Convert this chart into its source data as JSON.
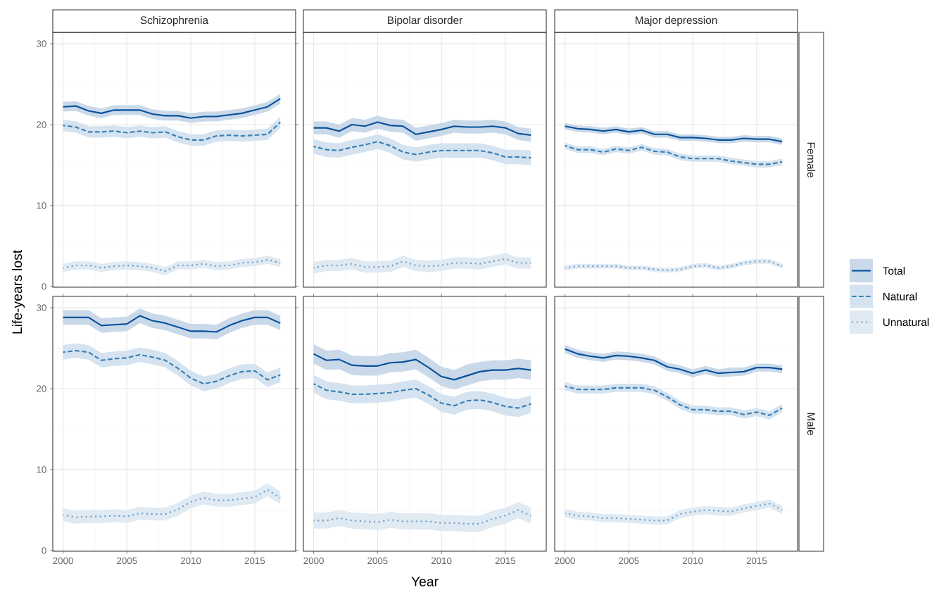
{
  "chart_data": [
    {
      "type": "line",
      "title": "Schizophrenia",
      "ylabel": "Life-years lost",
      "legend": "right",
      "x": [
        2000,
        2001,
        2002,
        2003,
        2004,
        2005,
        2006,
        2007,
        2008,
        2009,
        2010,
        2011,
        2012,
        2013,
        2014,
        2015,
        2016,
        2017
      ],
      "xlim": [
        1999.2,
        2018.2
      ],
      "ylim": [
        -0.1,
        31.4
      ],
      "xticks": [
        2000,
        2005,
        2010,
        2015
      ],
      "yticks": [
        0,
        10,
        20,
        30
      ],
      "grid": true,
      "tick_labels": "y",
      "series": [
        {
          "name": "Total",
          "color": "#08519c",
          "line_style": "solid",
          "values": [
            22.2,
            22.3,
            21.7,
            21.4,
            21.8,
            21.8,
            21.8,
            21.3,
            21.1,
            21.1,
            20.8,
            21.0,
            21.0,
            21.2,
            21.4,
            21.8,
            22.2,
            23.2
          ],
          "lower": [
            21.6,
            21.7,
            21.1,
            20.8,
            21.2,
            21.2,
            21.2,
            20.7,
            20.5,
            20.5,
            20.2,
            20.4,
            20.4,
            20.6,
            20.8,
            21.2,
            21.6,
            22.6
          ],
          "upper": [
            22.8,
            22.9,
            22.3,
            22.0,
            22.4,
            22.4,
            22.4,
            21.9,
            21.7,
            21.7,
            21.4,
            21.6,
            21.6,
            21.8,
            22.0,
            22.4,
            22.8,
            23.8
          ]
        },
        {
          "name": "Natural",
          "color": "#3b7fb5",
          "line_style": "dashed",
          "values": [
            19.9,
            19.7,
            19.1,
            19.1,
            19.2,
            19.0,
            19.2,
            19.0,
            19.1,
            18.5,
            18.1,
            18.1,
            18.6,
            18.7,
            18.6,
            18.7,
            18.8,
            20.3
          ],
          "lower": [
            19.2,
            19.0,
            18.4,
            18.4,
            18.5,
            18.3,
            18.5,
            18.3,
            18.4,
            17.8,
            17.4,
            17.4,
            17.9,
            18.0,
            17.9,
            18.0,
            18.1,
            19.6
          ],
          "upper": [
            20.6,
            20.4,
            19.8,
            19.8,
            19.9,
            19.7,
            19.9,
            19.7,
            19.8,
            19.2,
            18.8,
            18.8,
            19.3,
            19.4,
            19.3,
            19.4,
            19.5,
            21.0
          ]
        },
        {
          "name": "Unnatural",
          "color": "#6f9ec8",
          "line_style": "dotted",
          "values": [
            2.3,
            2.6,
            2.6,
            2.3,
            2.5,
            2.6,
            2.5,
            2.3,
            1.9,
            2.6,
            2.6,
            2.8,
            2.5,
            2.6,
            2.9,
            3.0,
            3.3,
            2.9
          ],
          "lower": [
            1.8,
            2.1,
            2.1,
            1.8,
            2.0,
            2.1,
            2.0,
            1.8,
            1.4,
            2.1,
            2.1,
            2.3,
            2.0,
            2.1,
            2.4,
            2.5,
            2.8,
            2.4
          ],
          "upper": [
            2.8,
            3.1,
            3.1,
            2.8,
            3.0,
            3.1,
            3.0,
            2.8,
            2.4,
            3.1,
            3.1,
            3.3,
            3.0,
            3.1,
            3.4,
            3.5,
            3.8,
            3.4
          ]
        }
      ]
    },
    {
      "type": "line",
      "title": "Bipolar disorder",
      "x": [
        2000,
        2001,
        2002,
        2003,
        2004,
        2005,
        2006,
        2007,
        2008,
        2009,
        2010,
        2011,
        2012,
        2013,
        2014,
        2015,
        2016,
        2017
      ],
      "xlim": [
        1999.2,
        2018.2
      ],
      "ylim": [
        -0.1,
        31.4
      ],
      "xticks": [
        2000,
        2005,
        2010,
        2015
      ],
      "yticks": [
        0,
        10,
        20,
        30
      ],
      "grid": true,
      "tick_labels": false,
      "series": [
        {
          "color": "#08519c",
          "line_style": "solid",
          "values": [
            19.6,
            19.6,
            19.2,
            20.0,
            19.8,
            20.3,
            19.9,
            19.8,
            18.8,
            19.1,
            19.4,
            19.8,
            19.7,
            19.7,
            19.8,
            19.6,
            18.9,
            18.7
          ],
          "lower": [
            18.8,
            18.8,
            18.4,
            19.2,
            19.0,
            19.5,
            19.1,
            19.0,
            18.0,
            18.3,
            18.6,
            19.0,
            18.9,
            18.9,
            19.0,
            18.8,
            18.1,
            17.9
          ],
          "upper": [
            20.4,
            20.4,
            20.0,
            20.8,
            20.6,
            21.1,
            20.7,
            20.6,
            19.6,
            19.9,
            20.2,
            20.6,
            20.5,
            20.5,
            20.6,
            20.4,
            19.7,
            19.5
          ]
        },
        {
          "color": "#3b7fb5",
          "line_style": "dashed",
          "values": [
            17.3,
            16.9,
            16.8,
            17.2,
            17.5,
            17.9,
            17.4,
            16.6,
            16.3,
            16.6,
            16.8,
            16.8,
            16.8,
            16.8,
            16.5,
            16.0,
            16.0,
            15.9
          ],
          "lower": [
            16.4,
            16.0,
            15.9,
            16.3,
            16.6,
            17.0,
            16.5,
            15.7,
            15.4,
            15.7,
            15.9,
            15.9,
            15.9,
            15.9,
            15.6,
            15.1,
            15.1,
            15.0
          ],
          "upper": [
            18.2,
            17.8,
            17.7,
            18.1,
            18.4,
            18.8,
            18.3,
            17.5,
            17.2,
            17.5,
            17.7,
            17.7,
            17.7,
            17.7,
            17.4,
            16.9,
            16.9,
            16.8
          ]
        },
        {
          "color": "#6f9ec8",
          "line_style": "dotted",
          "values": [
            2.3,
            2.6,
            2.6,
            2.8,
            2.4,
            2.4,
            2.5,
            3.1,
            2.6,
            2.5,
            2.6,
            2.9,
            2.9,
            2.8,
            3.1,
            3.4,
            2.9,
            2.9
          ],
          "lower": [
            1.6,
            1.9,
            1.9,
            2.1,
            1.7,
            1.7,
            1.8,
            2.4,
            1.9,
            1.8,
            1.9,
            2.2,
            2.2,
            2.1,
            2.4,
            2.7,
            2.2,
            2.2
          ],
          "upper": [
            3.0,
            3.3,
            3.3,
            3.5,
            3.1,
            3.1,
            3.2,
            3.8,
            3.3,
            3.2,
            3.3,
            3.6,
            3.6,
            3.5,
            3.8,
            4.1,
            3.6,
            3.6
          ]
        }
      ]
    },
    {
      "type": "line",
      "title": "Major depression",
      "annotations": [
        "Female"
      ],
      "x": [
        2000,
        2001,
        2002,
        2003,
        2004,
        2005,
        2006,
        2007,
        2008,
        2009,
        2010,
        2011,
        2012,
        2013,
        2014,
        2015,
        2016,
        2017
      ],
      "xlim": [
        1999.2,
        2018.2
      ],
      "ylim": [
        -0.1,
        31.4
      ],
      "xticks": [
        2000,
        2005,
        2010,
        2015
      ],
      "yticks": [
        0,
        10,
        20,
        30
      ],
      "grid": true,
      "tick_labels": false,
      "series": [
        {
          "color": "#08519c",
          "line_style": "solid",
          "values": [
            19.8,
            19.5,
            19.4,
            19.2,
            19.4,
            19.1,
            19.3,
            18.8,
            18.8,
            18.4,
            18.4,
            18.3,
            18.1,
            18.1,
            18.3,
            18.2,
            18.2,
            17.9
          ],
          "lower": [
            19.4,
            19.1,
            19.0,
            18.8,
            19.0,
            18.7,
            18.9,
            18.4,
            18.4,
            18.0,
            18.0,
            17.9,
            17.7,
            17.7,
            17.9,
            17.8,
            17.8,
            17.5
          ],
          "upper": [
            20.2,
            19.9,
            19.8,
            19.6,
            19.8,
            19.5,
            19.7,
            19.2,
            19.2,
            18.8,
            18.8,
            18.7,
            18.5,
            18.5,
            18.7,
            18.6,
            18.6,
            18.3
          ]
        },
        {
          "color": "#3b7fb5",
          "line_style": "dashed",
          "values": [
            17.4,
            16.9,
            16.9,
            16.6,
            17.0,
            16.8,
            17.2,
            16.7,
            16.6,
            16.0,
            15.8,
            15.8,
            15.8,
            15.5,
            15.3,
            15.1,
            15.1,
            15.4
          ],
          "lower": [
            17.0,
            16.5,
            16.5,
            16.2,
            16.6,
            16.4,
            16.8,
            16.3,
            16.2,
            15.6,
            15.4,
            15.4,
            15.4,
            15.1,
            14.9,
            14.7,
            14.7,
            15.0
          ],
          "upper": [
            17.8,
            17.3,
            17.3,
            17.0,
            17.4,
            17.2,
            17.6,
            17.1,
            17.0,
            16.4,
            16.2,
            16.2,
            16.2,
            15.9,
            15.7,
            15.5,
            15.5,
            15.8
          ]
        },
        {
          "color": "#6f9ec8",
          "line_style": "dotted",
          "values": [
            2.3,
            2.5,
            2.5,
            2.5,
            2.5,
            2.3,
            2.3,
            2.1,
            2.0,
            2.1,
            2.5,
            2.6,
            2.3,
            2.5,
            2.9,
            3.1,
            3.1,
            2.5
          ],
          "lower": [
            2.0,
            2.2,
            2.2,
            2.2,
            2.2,
            2.0,
            2.0,
            1.8,
            1.7,
            1.8,
            2.2,
            2.3,
            2.0,
            2.2,
            2.6,
            2.8,
            2.8,
            2.2
          ],
          "upper": [
            2.6,
            2.8,
            2.8,
            2.8,
            2.8,
            2.6,
            2.6,
            2.4,
            2.3,
            2.4,
            2.8,
            2.9,
            2.6,
            2.8,
            3.2,
            3.4,
            3.4,
            2.8
          ]
        }
      ]
    },
    {
      "type": "line",
      "x": [
        2000,
        2001,
        2002,
        2003,
        2004,
        2005,
        2006,
        2007,
        2008,
        2009,
        2010,
        2011,
        2012,
        2013,
        2014,
        2015,
        2016,
        2017
      ],
      "xlim": [
        1999.2,
        2018.2
      ],
      "ylim": [
        -0.1,
        31.4
      ],
      "xticks": [
        2000,
        2005,
        2010,
        2015
      ],
      "yticks": [
        0,
        10,
        20,
        30
      ],
      "grid": true,
      "series": [
        {
          "color": "#08519c",
          "line_style": "solid",
          "values": [
            28.8,
            28.8,
            28.8,
            27.8,
            27.9,
            28.0,
            29.0,
            28.4,
            28.1,
            27.6,
            27.1,
            27.1,
            27.0,
            27.8,
            28.4,
            28.8,
            28.8,
            28.1
          ],
          "lower": [
            27.9,
            27.9,
            27.9,
            26.9,
            27.0,
            27.1,
            28.1,
            27.5,
            27.2,
            26.7,
            26.2,
            26.2,
            26.1,
            26.9,
            27.5,
            27.9,
            27.9,
            27.2
          ],
          "upper": [
            29.7,
            29.7,
            29.7,
            28.7,
            28.8,
            28.9,
            29.9,
            29.3,
            29.0,
            28.5,
            28.0,
            28.0,
            27.9,
            28.7,
            29.3,
            29.7,
            29.7,
            29.0
          ]
        },
        {
          "color": "#3b7fb5",
          "line_style": "dashed",
          "values": [
            24.5,
            24.7,
            24.5,
            23.5,
            23.7,
            23.8,
            24.2,
            23.9,
            23.5,
            22.5,
            21.3,
            20.6,
            20.9,
            21.6,
            22.1,
            22.2,
            21.1,
            21.7
          ],
          "lower": [
            23.6,
            23.8,
            23.6,
            22.6,
            22.8,
            22.9,
            23.3,
            23.0,
            22.6,
            21.6,
            20.4,
            19.7,
            20.0,
            20.7,
            21.2,
            21.3,
            20.2,
            20.8
          ],
          "upper": [
            25.4,
            25.6,
            25.4,
            24.4,
            24.6,
            24.7,
            25.1,
            24.8,
            24.4,
            23.4,
            22.2,
            21.5,
            21.8,
            22.5,
            23.0,
            23.1,
            22.0,
            22.6
          ]
        },
        {
          "color": "#6f9ec8",
          "line_style": "dotted",
          "values": [
            4.4,
            4.1,
            4.2,
            4.2,
            4.3,
            4.2,
            4.6,
            4.5,
            4.5,
            5.1,
            6.0,
            6.5,
            6.2,
            6.2,
            6.4,
            6.6,
            7.5,
            6.5
          ],
          "lower": [
            3.6,
            3.3,
            3.4,
            3.4,
            3.5,
            3.4,
            3.8,
            3.7,
            3.7,
            4.3,
            5.2,
            5.7,
            5.4,
            5.4,
            5.6,
            5.8,
            6.7,
            5.7
          ],
          "upper": [
            5.2,
            4.9,
            5.0,
            5.0,
            5.1,
            5.0,
            5.4,
            5.3,
            5.3,
            5.9,
            6.8,
            7.3,
            7.0,
            7.0,
            7.2,
            7.4,
            8.3,
            7.3
          ]
        }
      ]
    },
    {
      "type": "line",
      "xlabel": "Year",
      "x": [
        2000,
        2001,
        2002,
        2003,
        2004,
        2005,
        2006,
        2007,
        2008,
        2009,
        2010,
        2011,
        2012,
        2013,
        2014,
        2015,
        2016,
        2017
      ],
      "xlim": [
        1999.2,
        2018.2
      ],
      "ylim": [
        -0.1,
        31.4
      ],
      "xticks": [
        2000,
        2005,
        2010,
        2015
      ],
      "yticks": [
        0,
        10,
        20,
        30
      ],
      "grid": true,
      "tick_labels": "x",
      "series": [
        {
          "color": "#08519c",
          "line_style": "solid",
          "values": [
            24.3,
            23.5,
            23.6,
            22.9,
            22.8,
            22.8,
            23.2,
            23.3,
            23.6,
            22.6,
            21.5,
            21.1,
            21.6,
            22.1,
            22.3,
            22.3,
            22.5,
            22.3
          ],
          "lower": [
            23.1,
            22.3,
            22.4,
            21.7,
            21.6,
            21.6,
            22.0,
            22.1,
            22.4,
            21.4,
            20.3,
            19.9,
            20.4,
            20.9,
            21.1,
            21.1,
            21.3,
            21.1
          ],
          "upper": [
            25.5,
            24.7,
            24.8,
            24.1,
            24.0,
            24.0,
            24.4,
            24.5,
            24.8,
            23.8,
            22.7,
            22.3,
            23.0,
            23.3,
            23.5,
            23.5,
            23.7,
            23.5
          ]
        },
        {
          "color": "#3b7fb5",
          "line_style": "dashed",
          "values": [
            20.6,
            19.8,
            19.6,
            19.3,
            19.3,
            19.4,
            19.5,
            19.8,
            20.0,
            19.2,
            18.2,
            17.9,
            18.5,
            18.6,
            18.3,
            17.8,
            17.6,
            18.1
          ],
          "lower": [
            19.5,
            18.7,
            18.5,
            18.2,
            18.2,
            18.3,
            18.4,
            18.7,
            18.9,
            18.1,
            17.1,
            16.8,
            17.4,
            17.5,
            17.2,
            16.7,
            16.5,
            17.0
          ],
          "upper": [
            21.7,
            20.9,
            20.7,
            20.4,
            20.4,
            20.5,
            20.6,
            20.9,
            21.1,
            20.3,
            19.3,
            19.0,
            19.6,
            19.7,
            19.4,
            18.9,
            18.7,
            19.2
          ]
        },
        {
          "color": "#6f9ec8",
          "line_style": "dotted",
          "values": [
            3.7,
            3.7,
            4.0,
            3.7,
            3.6,
            3.5,
            3.8,
            3.6,
            3.6,
            3.6,
            3.4,
            3.4,
            3.3,
            3.3,
            3.9,
            4.3,
            5.0,
            4.3
          ],
          "lower": [
            2.7,
            2.7,
            3.0,
            2.7,
            2.6,
            2.5,
            2.8,
            2.6,
            2.6,
            2.6,
            2.4,
            2.4,
            2.3,
            2.3,
            2.9,
            3.3,
            4.0,
            3.3
          ],
          "upper": [
            4.7,
            4.7,
            5.0,
            4.7,
            4.6,
            4.5,
            4.8,
            4.6,
            4.6,
            4.6,
            4.4,
            4.4,
            4.3,
            4.3,
            4.9,
            5.3,
            6.0,
            5.3
          ]
        }
      ]
    },
    {
      "type": "line",
      "annotations": [
        "Male"
      ],
      "x": [
        2000,
        2001,
        2002,
        2003,
        2004,
        2005,
        2006,
        2007,
        2008,
        2009,
        2010,
        2011,
        2012,
        2013,
        2014,
        2015,
        2016,
        2017
      ],
      "xlim": [
        1999.2,
        2018.2
      ],
      "ylim": [
        -0.1,
        31.4
      ],
      "xticks": [
        2000,
        2005,
        2010,
        2015
      ],
      "yticks": [
        0,
        10,
        20,
        30
      ],
      "grid": true,
      "tick_labels": "x",
      "series": [
        {
          "color": "#08519c",
          "line_style": "solid",
          "values": [
            24.9,
            24.3,
            24.0,
            23.8,
            24.1,
            24.0,
            23.8,
            23.5,
            22.7,
            22.4,
            21.9,
            22.3,
            21.9,
            22.0,
            22.1,
            22.6,
            22.6,
            22.4
          ],
          "lower": [
            24.4,
            23.8,
            23.5,
            23.3,
            23.6,
            23.5,
            23.3,
            23.0,
            22.2,
            21.9,
            21.4,
            21.8,
            21.4,
            21.5,
            21.6,
            22.1,
            22.1,
            21.9
          ],
          "upper": [
            25.4,
            24.8,
            24.5,
            24.3,
            24.6,
            24.5,
            24.3,
            24.0,
            23.2,
            22.9,
            22.4,
            22.8,
            22.4,
            22.6,
            22.6,
            23.1,
            23.1,
            22.9
          ]
        },
        {
          "color": "#3b7fb5",
          "line_style": "dashed",
          "values": [
            20.3,
            19.9,
            19.9,
            19.9,
            20.1,
            20.1,
            20.1,
            19.8,
            19.0,
            18.0,
            17.4,
            17.4,
            17.2,
            17.2,
            16.8,
            17.1,
            16.7,
            17.6
          ],
          "lower": [
            19.8,
            19.4,
            19.4,
            19.4,
            19.6,
            19.6,
            19.6,
            19.3,
            18.5,
            17.5,
            16.9,
            16.9,
            16.7,
            16.7,
            16.3,
            16.6,
            16.2,
            17.1
          ],
          "upper": [
            20.8,
            20.4,
            20.4,
            20.4,
            20.6,
            20.6,
            20.6,
            20.3,
            19.5,
            18.5,
            17.9,
            17.9,
            17.7,
            17.7,
            17.3,
            17.6,
            17.2,
            18.1
          ]
        },
        {
          "color": "#6f9ec8",
          "line_style": "dotted",
          "values": [
            4.6,
            4.3,
            4.2,
            4.0,
            4.0,
            3.9,
            3.8,
            3.7,
            3.7,
            4.5,
            4.8,
            5.0,
            4.9,
            4.8,
            5.2,
            5.5,
            5.8,
            5.0
          ],
          "lower": [
            4.1,
            3.8,
            3.7,
            3.5,
            3.5,
            3.4,
            3.3,
            3.2,
            3.2,
            4.0,
            4.3,
            4.5,
            4.3,
            4.3,
            4.7,
            5.0,
            5.3,
            4.5
          ],
          "upper": [
            5.1,
            4.8,
            4.7,
            4.5,
            4.5,
            4.4,
            4.3,
            4.2,
            4.2,
            5.0,
            5.3,
            5.5,
            5.4,
            5.3,
            5.7,
            6.0,
            6.3,
            5.5
          ]
        }
      ]
    }
  ]
}
